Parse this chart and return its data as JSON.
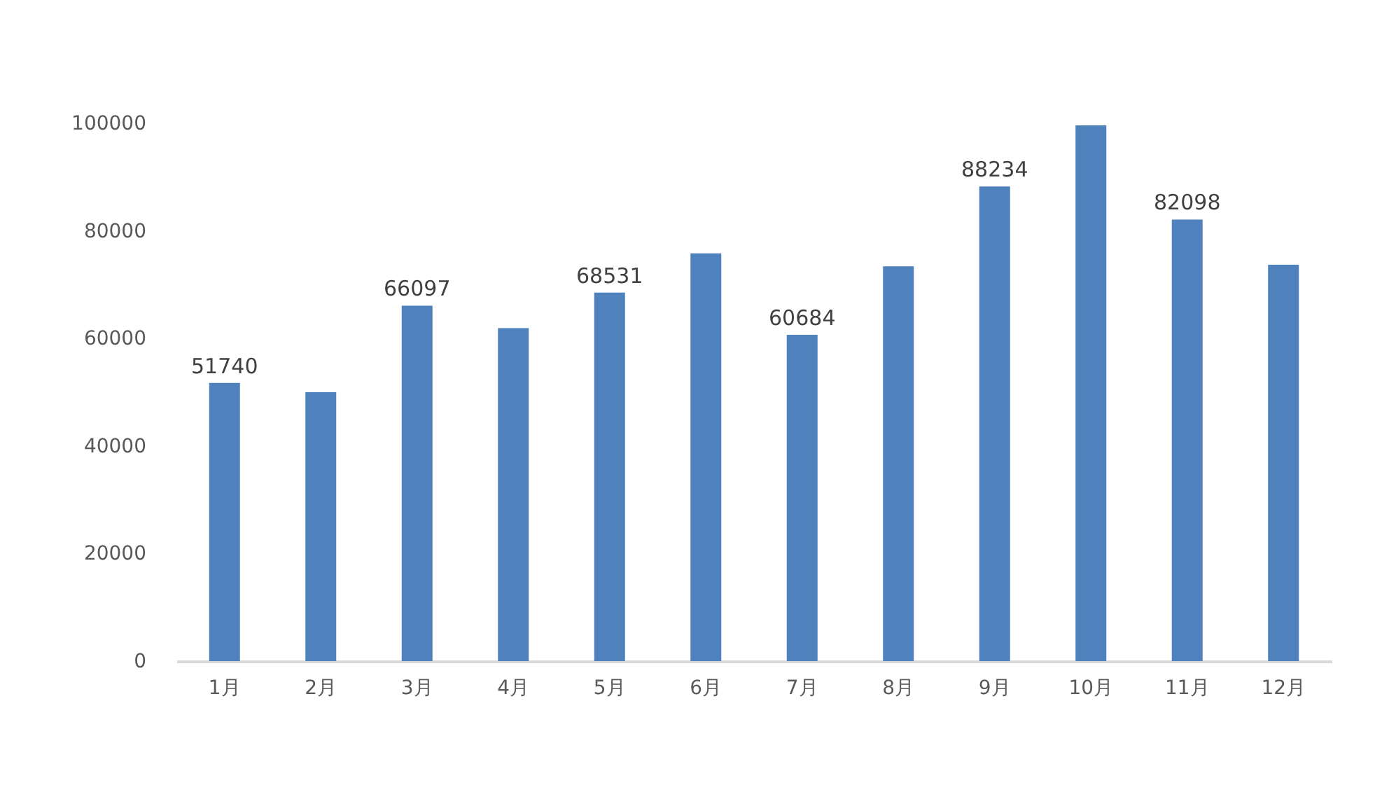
{
  "chart_data": {
    "type": "bar",
    "categories": [
      "1月",
      "2月",
      "3月",
      "4月",
      "5月",
      "6月",
      "7月",
      "8月",
      "9月",
      "10月",
      "11月",
      "12月"
    ],
    "values": [
      51740,
      50000,
      66097,
      61900,
      68531,
      75800,
      60684,
      73400,
      88234,
      99600,
      82098,
      73700
    ],
    "value_labels": [
      "51740",
      null,
      "66097",
      null,
      "68531",
      null,
      "60684",
      null,
      "88234",
      null,
      "82098",
      null
    ],
    "color": "#4f81bd",
    "ylim": [
      0,
      100000
    ],
    "yticks": [
      0,
      20000,
      40000,
      60000,
      80000,
      100000
    ],
    "grid": false
  }
}
